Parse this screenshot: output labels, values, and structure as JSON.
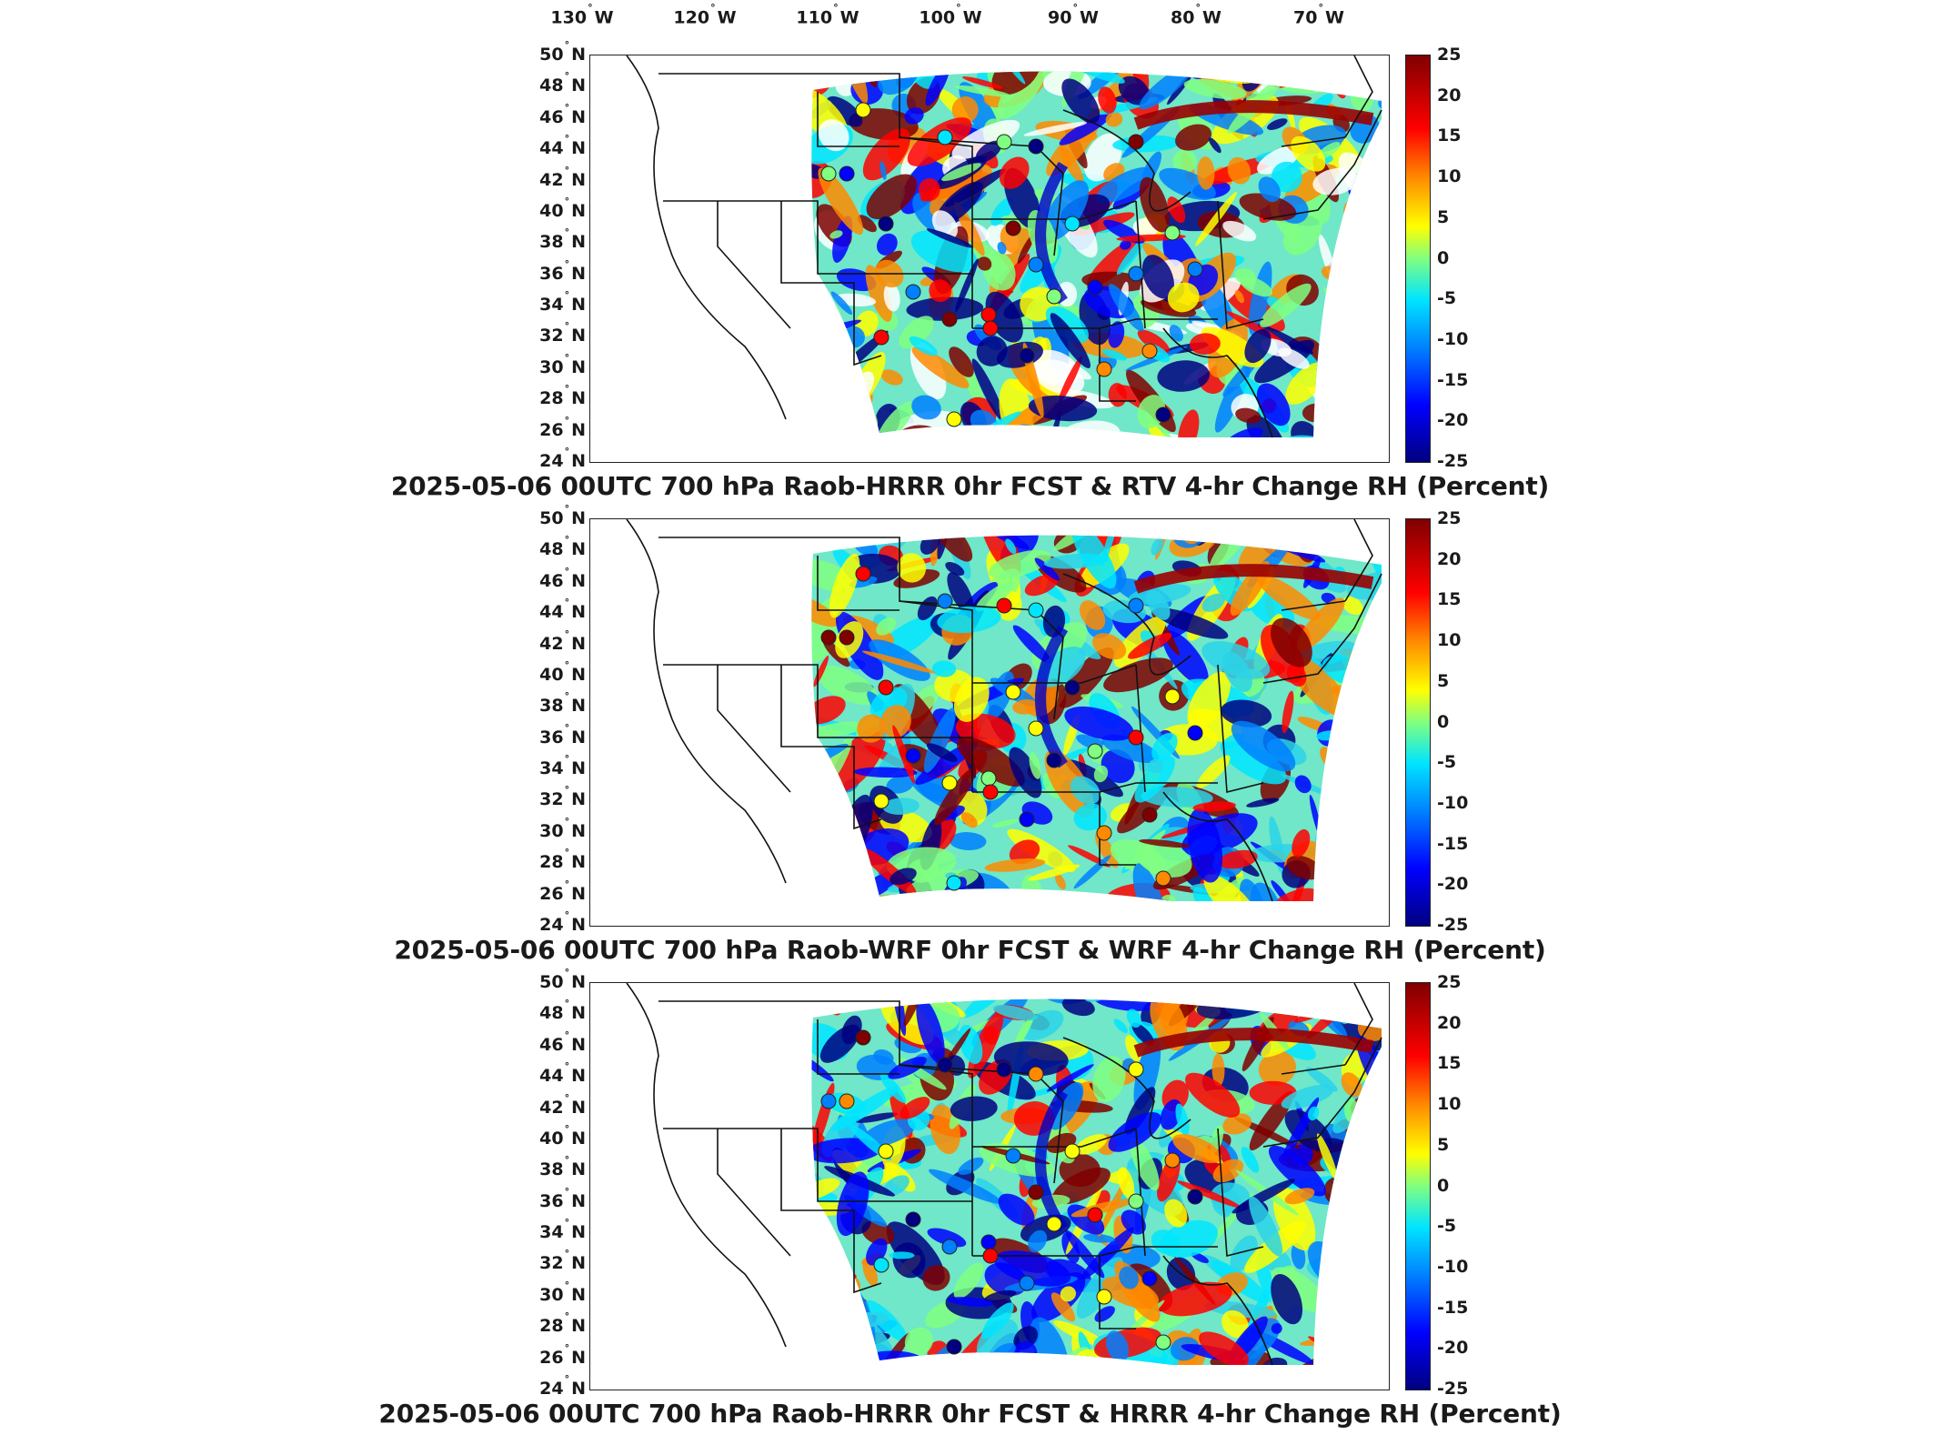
{
  "longitude_labels": [
    {
      "deg": "130",
      "dir": "W"
    },
    {
      "deg": "120",
      "dir": "W"
    },
    {
      "deg": "110",
      "dir": "W"
    },
    {
      "deg": "100",
      "dir": "W"
    },
    {
      "deg": "90",
      "dir": "W"
    },
    {
      "deg": "80",
      "dir": "W"
    },
    {
      "deg": "70",
      "dir": "W"
    }
  ],
  "latitude_labels": [
    "50",
    "48",
    "46",
    "44",
    "42",
    "40",
    "38",
    "36",
    "34",
    "32",
    "30",
    "28",
    "26",
    "24"
  ],
  "latitude_dir": "N",
  "colorbar": {
    "ticks": [
      "25",
      "20",
      "15",
      "10",
      "5",
      "0",
      "-5",
      "-10",
      "-15",
      "-20",
      "-25"
    ],
    "range": [
      -25,
      25
    ],
    "colormap": "jet",
    "colors": [
      "#7f0000",
      "#ff0000",
      "#ff8a00",
      "#ffff00",
      "#80ff80",
      "#00e5ff",
      "#0080ff",
      "#0000ff",
      "#000080"
    ]
  },
  "panels": [
    {
      "title": "2025-05-06 00UTC 700 hPa Raob-HRRR 0hr FCST & RTV 4-hr Change RH (Percent)"
    },
    {
      "title": "2025-05-06 00UTC 700 hPa Raob-WRF 0hr FCST & WRF 4-hr Change RH (Percent)"
    },
    {
      "title": "2025-05-06 00UTC 700 hPa Raob-HRRR 0hr FCST & HRRR 4-hr Change RH (Percent)"
    }
  ]
}
